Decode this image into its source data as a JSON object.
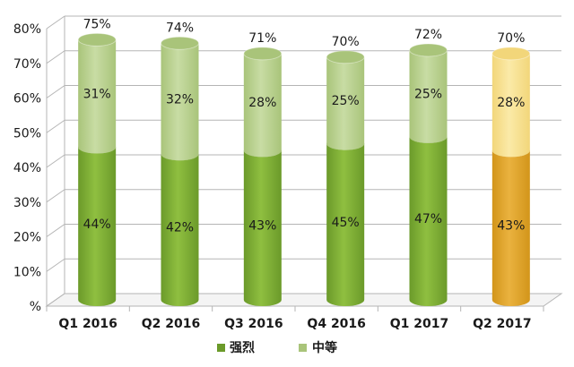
{
  "chart_data": {
    "type": "bar",
    "stacked": true,
    "style": "3d-cylinder",
    "categories": [
      "Q1 2016",
      "Q2 2016",
      "Q3 2016",
      "Q4 2016",
      "Q1 2017",
      "Q2 2017"
    ],
    "series": [
      {
        "name": "强烈",
        "values": [
          44,
          42,
          43,
          45,
          47,
          43
        ],
        "labels": [
          "44%",
          "42%",
          "43%",
          "45%",
          "47%",
          "43%"
        ]
      },
      {
        "name": "中等",
        "values": [
          31,
          32,
          28,
          25,
          25,
          28
        ],
        "labels": [
          "31%",
          "32%",
          "28%",
          "25%",
          "25%",
          "28%"
        ]
      }
    ],
    "totals": [
      "75%",
      "74%",
      "71%",
      "70%",
      "72%",
      "70%"
    ],
    "y_ticks": [
      "%",
      "10%",
      "20%",
      "30%",
      "40%",
      "50%",
      "60%",
      "70%",
      "80%"
    ],
    "ylim": [
      0,
      80
    ],
    "grid": true,
    "legend_position": "bottom",
    "highlight_category_index": 5,
    "colors": {
      "strong": "#6b9a2a",
      "strong_light": "#8fbf40",
      "moderate": "#a9c47a",
      "moderate_light": "#c8dca4",
      "highlight_strong": "#d2951a",
      "highlight_strong_light": "#eab23f",
      "highlight_moderate": "#f2d67a",
      "highlight_moderate_light": "#fbeaa8",
      "grid": "#b5b5b5"
    }
  }
}
